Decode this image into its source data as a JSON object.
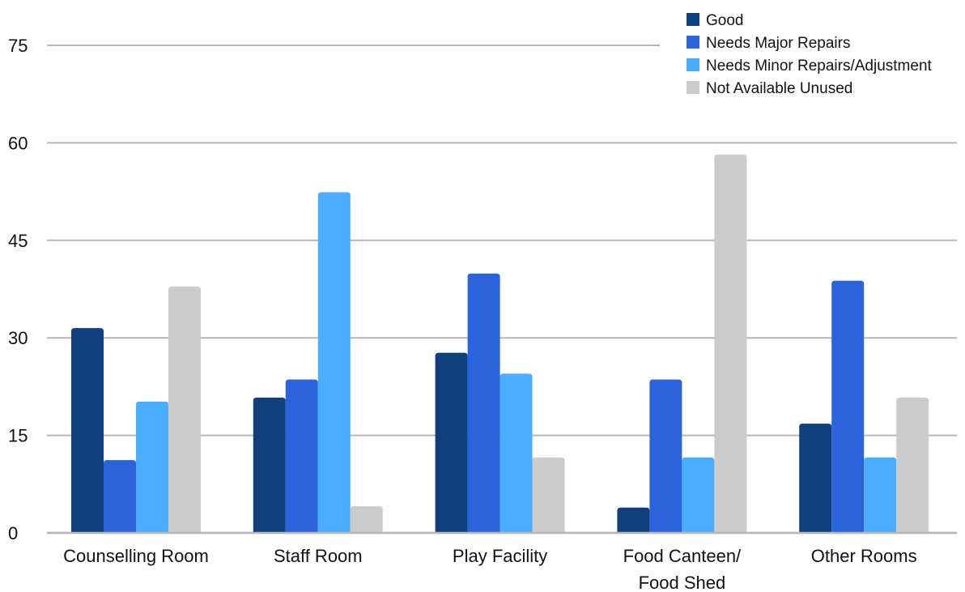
{
  "chart_data": {
    "type": "bar",
    "title": "",
    "xlabel": "",
    "ylabel": "",
    "ylim": [
      0,
      75
    ],
    "yticks": [
      0,
      15,
      30,
      45,
      60,
      75
    ],
    "grid": true,
    "legend_position": "top-right",
    "categories": [
      [
        "Counselling Room"
      ],
      [
        "Staff Room"
      ],
      [
        "Play Facility"
      ],
      [
        "Food Canteen/",
        "Food Shed"
      ],
      [
        "Other Rooms"
      ]
    ],
    "series": [
      {
        "name": "Good",
        "color": "#0f3f7d",
        "values": [
          31.5,
          20.8,
          27.7,
          3.9,
          16.8
        ]
      },
      {
        "name": "Needs Major Repairs",
        "color": "#2b63dd",
        "values": [
          11.2,
          23.6,
          39.9,
          23.6,
          38.8
        ]
      },
      {
        "name": "Needs Minor Repairs/Adjustment",
        "color": "#4aadff",
        "values": [
          20.2,
          52.4,
          24.5,
          11.6,
          11.6
        ]
      },
      {
        "name": "Not Available Unused",
        "color": "#cbcbcb",
        "values": [
          37.9,
          4.1,
          11.6,
          58.2,
          20.8
        ]
      }
    ],
    "grid_color": "#b7b7b7"
  }
}
